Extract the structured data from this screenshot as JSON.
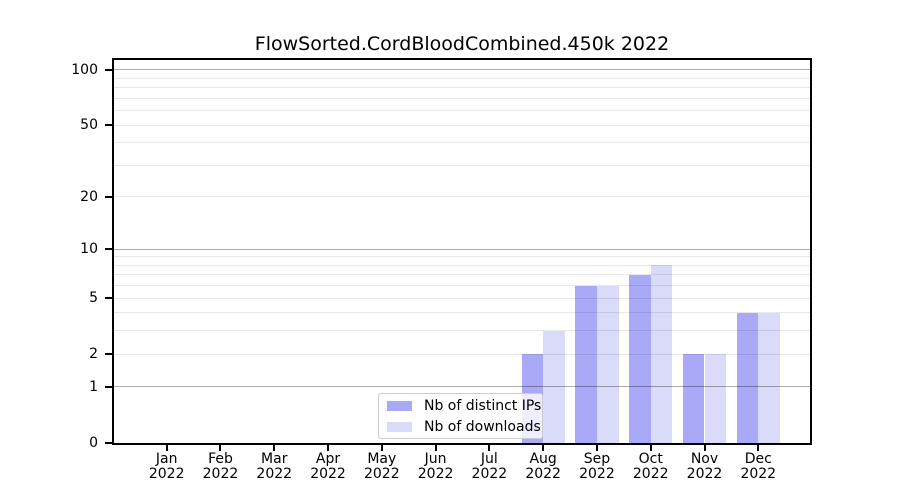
{
  "title": "FlowSorted.CordBloodCombined.450k 2022",
  "colors": {
    "ips": "#a9a9f7",
    "downloads": "#dadaf9",
    "axis": "#000000",
    "grid_major": "#b2b2b2",
    "grid_minor": "#e8e8e8",
    "legend_border": "#cccccc"
  },
  "legend": {
    "items": [
      {
        "key": "ips",
        "label": "Nb of distinct IPs"
      },
      {
        "key": "downloads",
        "label": "Nb of downloads"
      }
    ]
  },
  "chart_data": {
    "type": "bar",
    "title": "FlowSorted.CordBloodCombined.450k 2022",
    "categories": [
      "Jan 2022",
      "Feb 2022",
      "Mar 2022",
      "Apr 2022",
      "May 2022",
      "Jun 2022",
      "Jul 2022",
      "Aug 2022",
      "Sep 2022",
      "Oct 2022",
      "Nov 2022",
      "Dec 2022"
    ],
    "series": [
      {
        "name": "Nb of distinct IPs",
        "values": [
          0,
          0,
          0,
          0,
          0,
          0,
          0,
          2,
          6,
          7,
          2,
          4
        ]
      },
      {
        "name": "Nb of downloads",
        "values": [
          0,
          0,
          0,
          0,
          0,
          0,
          0,
          3,
          6,
          8,
          2,
          4
        ]
      }
    ],
    "xlabel": "",
    "ylabel": "",
    "yscale": "log1p",
    "ylim": [
      0,
      113
    ],
    "yticks": [
      0,
      1,
      2,
      5,
      10,
      20,
      50,
      100
    ],
    "grid_major_values": [
      1,
      10,
      100
    ],
    "grid_minor_values": [
      2,
      3,
      4,
      5,
      6,
      7,
      8,
      9,
      20,
      30,
      40,
      50,
      60,
      70,
      80,
      90
    ],
    "grid": "horizontal",
    "legend_position": "lower center"
  }
}
